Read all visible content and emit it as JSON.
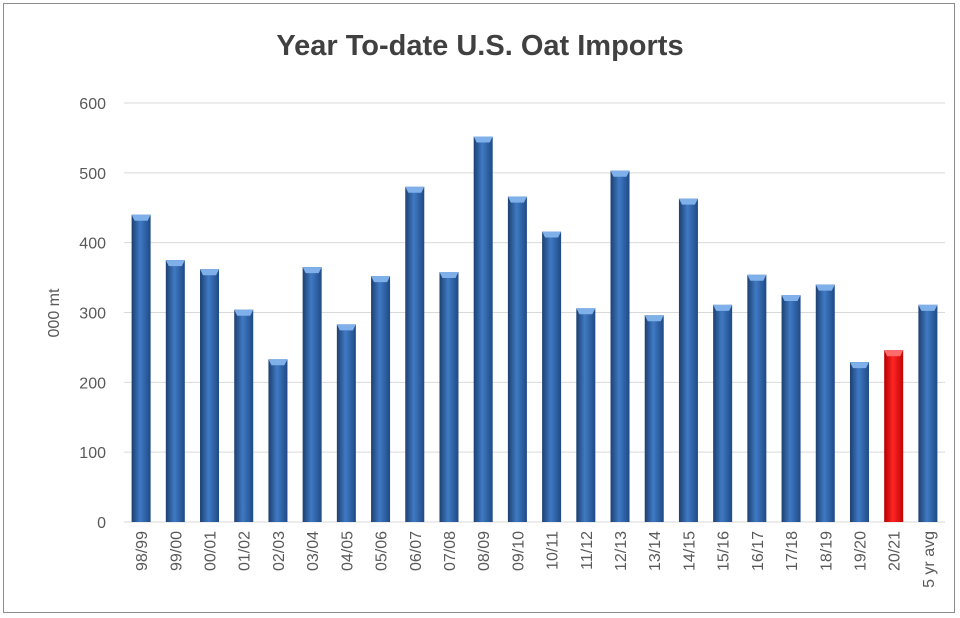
{
  "chart_data": {
    "type": "bar",
    "title": "Year To-date U.S. Oat Imports",
    "xlabel": "",
    "ylabel": "000 mt",
    "ylim": [
      0,
      600
    ],
    "yticks": [
      "0",
      "100",
      "200",
      "300",
      "400",
      "500",
      "600"
    ],
    "grid": true,
    "legend": "none",
    "categories": [
      "98/99",
      "99/00",
      "00/01",
      "01/02",
      "02/03",
      "03/04",
      "04/05",
      "05/06",
      "06/07",
      "07/08",
      "08/09",
      "09/10",
      "10/11",
      "11/12",
      "12/13",
      "13/14",
      "14/15",
      "15/16",
      "16/17",
      "17/18",
      "18/19",
      "19/20",
      "20/21",
      "5 yr avg"
    ],
    "values": [
      440,
      375,
      362,
      304,
      233,
      365,
      283,
      352,
      480,
      358,
      552,
      466,
      416,
      306,
      503,
      296,
      463,
      311,
      354,
      325,
      340,
      229,
      246,
      311
    ],
    "highlight_category": "20/21",
    "colors": {
      "bar": "#2f62a8",
      "bar_highlight": "#e50f0f",
      "grid": "#d9d9d9"
    }
  }
}
